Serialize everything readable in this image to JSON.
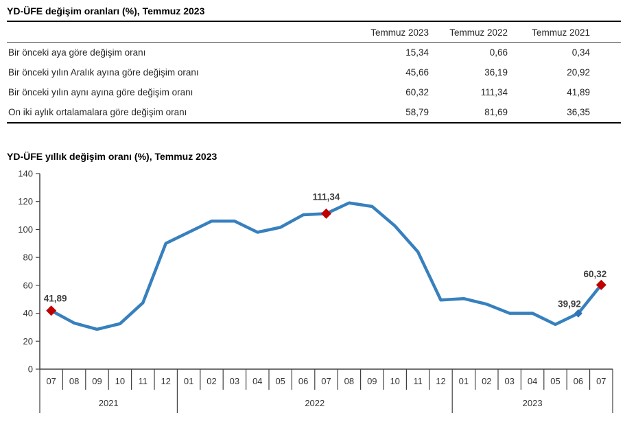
{
  "table": {
    "title": "YD-ÜFE değişim oranları (%), Temmuz 2023",
    "columns": [
      "Temmuz 2023",
      "Temmuz 2022",
      "Temmuz 2021"
    ],
    "rows": [
      {
        "label": "Bir önceki aya göre değişim oranı",
        "values": [
          "15,34",
          "0,66",
          "0,34"
        ]
      },
      {
        "label": "Bir önceki yılın Aralık ayına göre değişim oranı",
        "values": [
          "45,66",
          "36,19",
          "20,92"
        ]
      },
      {
        "label": "Bir önceki yılın aynı ayına göre değişim oranı",
        "values": [
          "60,32",
          "111,34",
          "41,89"
        ]
      },
      {
        "label": "On iki aylık ortalamalara göre değişim oranı",
        "values": [
          "58,79",
          "81,69",
          "36,35"
        ]
      }
    ]
  },
  "chart_data": {
    "type": "line",
    "title": "YD-ÜFE yıllık değişim oranı (%), Temmuz 2023",
    "xlabel": "",
    "ylabel": "",
    "ylim": [
      0,
      140
    ],
    "yticks": [
      0,
      20,
      40,
      60,
      80,
      100,
      120,
      140
    ],
    "grid": false,
    "legend": "none",
    "months": [
      "07",
      "08",
      "09",
      "10",
      "11",
      "12",
      "01",
      "02",
      "03",
      "04",
      "05",
      "06",
      "07",
      "08",
      "09",
      "10",
      "11",
      "12",
      "01",
      "02",
      "03",
      "04",
      "05",
      "06",
      "07"
    ],
    "year_groups": [
      {
        "label": "2021",
        "count": 6
      },
      {
        "label": "2022",
        "count": 12
      },
      {
        "label": "2023",
        "count": 7
      }
    ],
    "values": [
      41.89,
      33,
      28.5,
      32.5,
      47.5,
      90,
      98,
      106,
      106,
      98,
      101.5,
      110.5,
      111.34,
      119,
      116.5,
      102.5,
      84,
      49.5,
      50.5,
      46.5,
      40,
      40,
      32,
      39.92,
      60.32
    ],
    "annotations": [
      {
        "index": 0,
        "label": "41,89",
        "marker": "red"
      },
      {
        "index": 12,
        "label": "111,34",
        "marker": "red"
      },
      {
        "index": 23,
        "label": "39,92",
        "marker": "blue"
      },
      {
        "index": 24,
        "label": "60,32",
        "marker": "red"
      }
    ],
    "colors": {
      "line": "#3780BE",
      "marker_red": "#C00000",
      "marker_blue": "#2E75B6",
      "axis": "#404040",
      "text": "#333333",
      "annotation_text": "#3F3F3F"
    }
  }
}
